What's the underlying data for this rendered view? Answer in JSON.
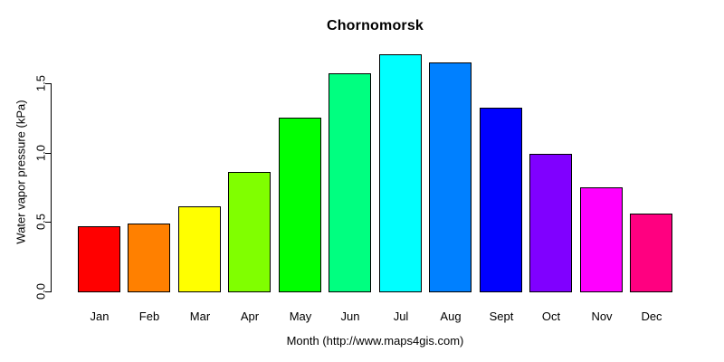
{
  "chart_data": {
    "type": "bar",
    "title": "Chornomorsk",
    "xlabel": "Month (http://www.maps4gis.com)",
    "ylabel": "Water vapor pressure (kPa)",
    "categories": [
      "Jan",
      "Feb",
      "Mar",
      "Apr",
      "May",
      "Jun",
      "Jul",
      "Aug",
      "Sept",
      "Oct",
      "Nov",
      "Dec"
    ],
    "values": [
      0.47,
      0.49,
      0.61,
      0.86,
      1.25,
      1.57,
      1.71,
      1.65,
      1.32,
      0.99,
      0.75,
      0.56
    ],
    "colors": [
      "#FF0000",
      "#FF8000",
      "#FFFF00",
      "#80FF00",
      "#00FF00",
      "#00FF80",
      "#00FFFF",
      "#0080FF",
      "#0000FF",
      "#8000FF",
      "#FF00FF",
      "#FF0080"
    ],
    "bar_edge_color": "#000000",
    "yticks": [
      0.0,
      0.5,
      1.0,
      1.5
    ],
    "ytick_labels": [
      "0.0",
      "0.5",
      "1.0",
      "1.5"
    ],
    "ylim": [
      0,
      1.75
    ],
    "grid": false,
    "legend": null,
    "background": "#FFFFFF"
  }
}
